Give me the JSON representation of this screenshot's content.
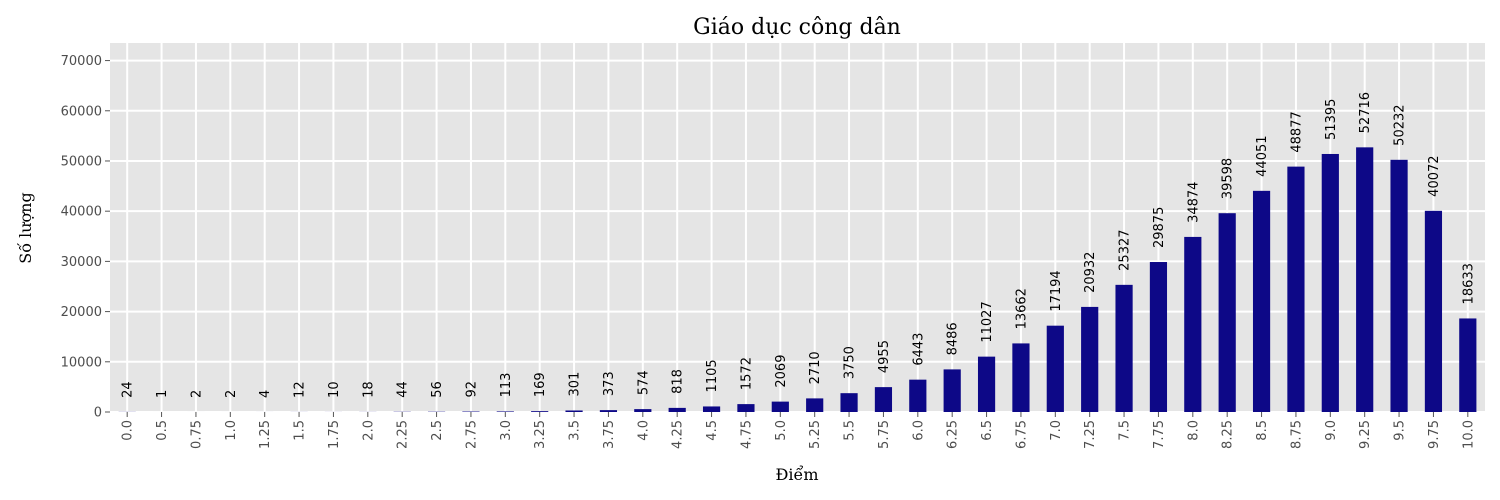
{
  "chart_data": {
    "type": "bar",
    "title": "Giáo dục công dân",
    "xlabel": "Điểm",
    "ylabel": "Số lượng",
    "ylim": [
      0,
      73500
    ],
    "yticks": [
      0,
      10000,
      20000,
      30000,
      40000,
      50000,
      60000,
      70000
    ],
    "grid": true,
    "bar_color": "#0d0887",
    "background_color": "#e5e5e5",
    "categories": [
      "0.0",
      "0.5",
      "0.75",
      "1.0",
      "1.25",
      "1.5",
      "1.75",
      "2.0",
      "2.25",
      "2.5",
      "2.75",
      "3.0",
      "3.25",
      "3.5",
      "3.75",
      "4.0",
      "4.25",
      "4.5",
      "4.75",
      "5.0",
      "5.25",
      "5.5",
      "5.75",
      "6.0",
      "6.25",
      "6.5",
      "6.75",
      "7.0",
      "7.25",
      "7.5",
      "7.75",
      "8.0",
      "8.25",
      "8.5",
      "8.75",
      "9.0",
      "9.25",
      "9.5",
      "9.75",
      "10.0"
    ],
    "values": [
      24,
      1,
      2,
      2,
      4,
      12,
      10,
      18,
      44,
      56,
      92,
      113,
      169,
      301,
      373,
      574,
      818,
      1105,
      1572,
      2069,
      2710,
      3750,
      4955,
      6443,
      8486,
      11027,
      13662,
      17194,
      20932,
      25327,
      29875,
      34874,
      39598,
      44051,
      48877,
      51395,
      52716,
      50232,
      40072,
      18633
    ]
  }
}
